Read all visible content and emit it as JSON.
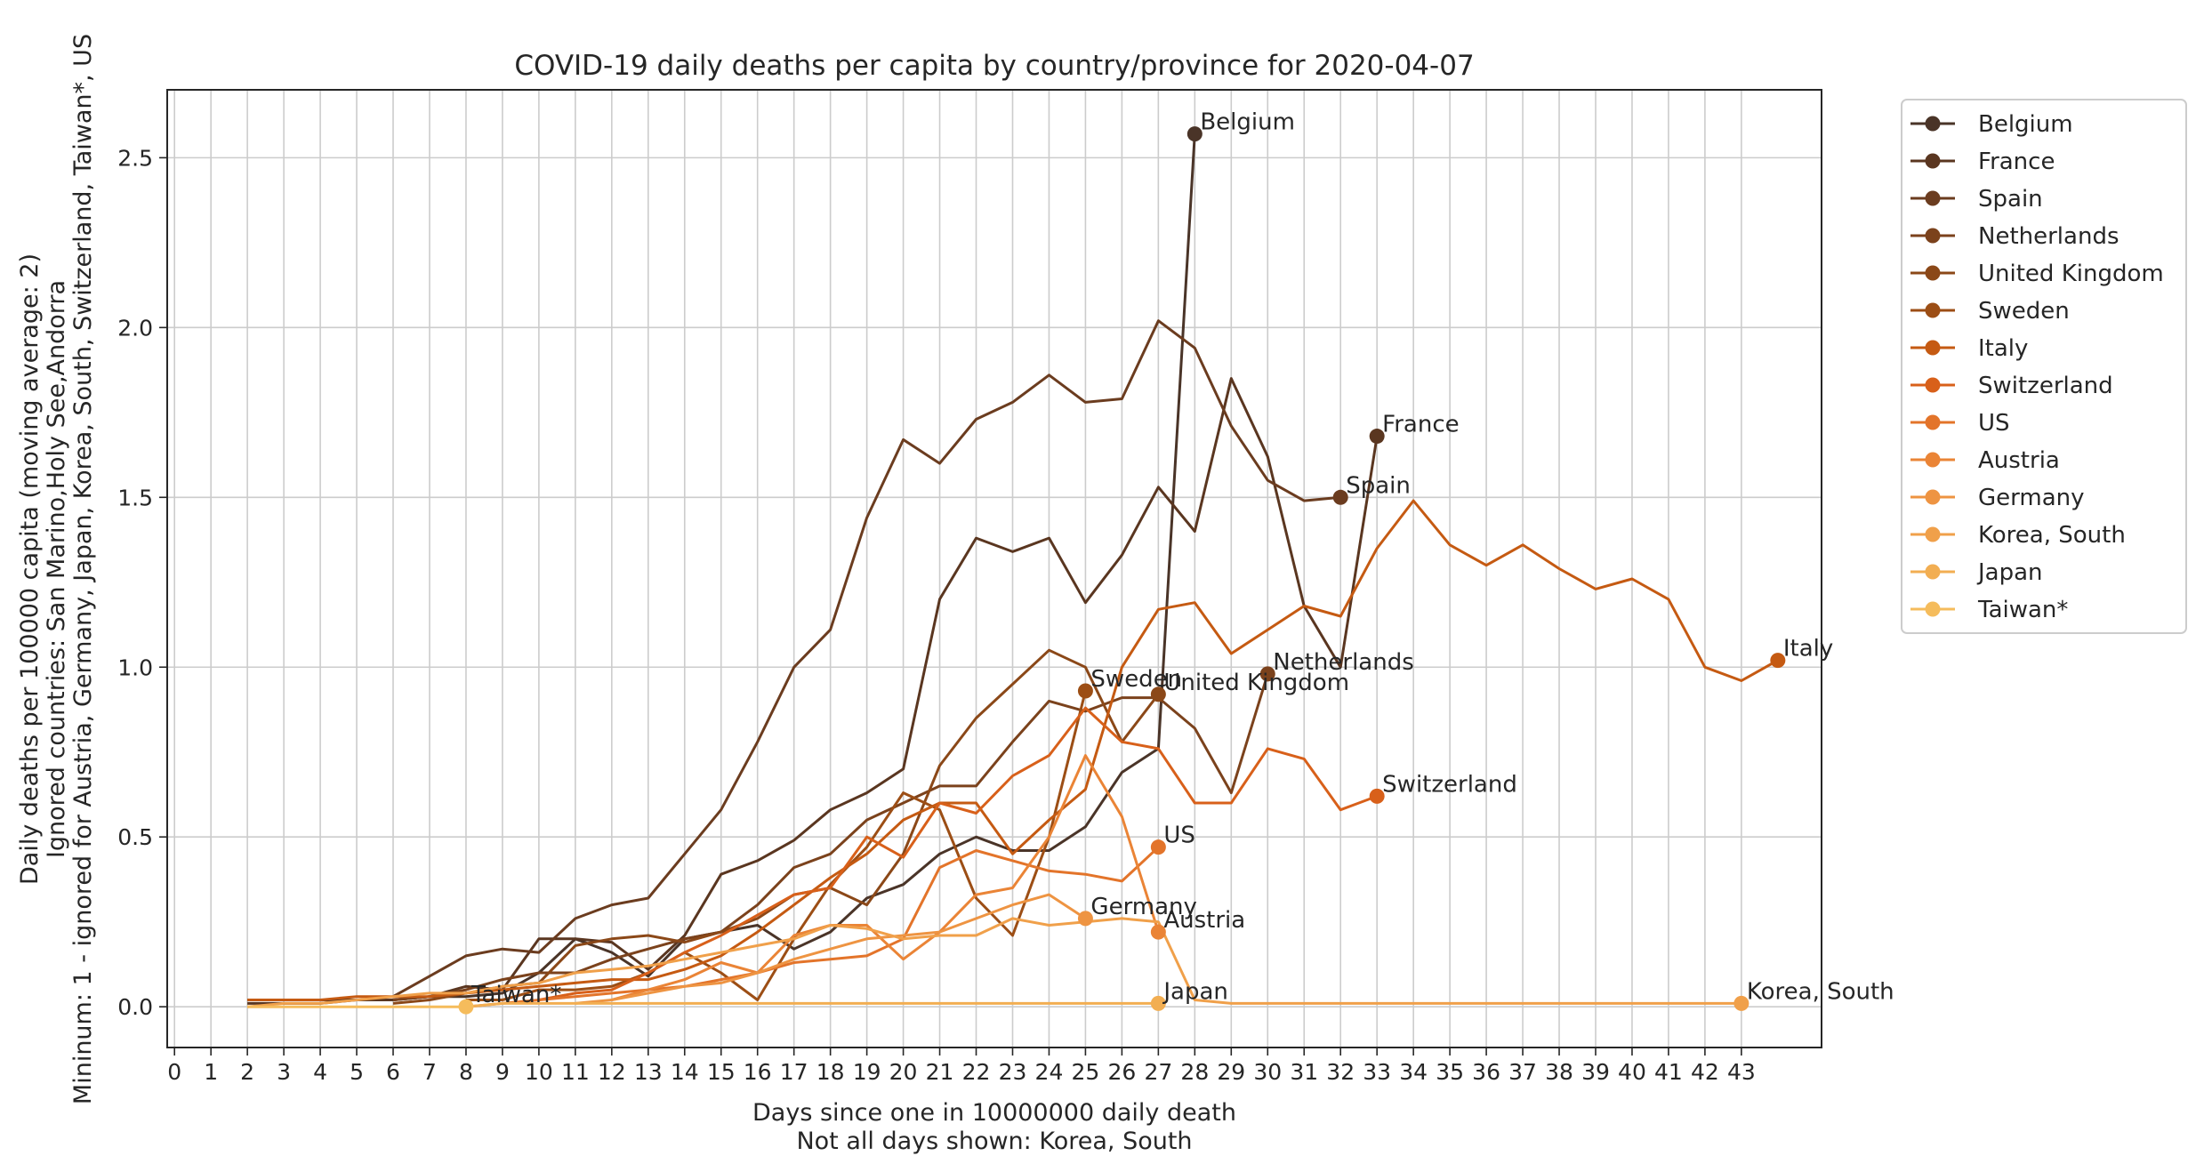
{
  "chart_data": {
    "type": "line",
    "title": "COVID-19 daily deaths per capita by country/province for 2020-04-07",
    "xlabel": [
      "Days since one in 10000000 daily death",
      "Not all days shown: Korea, South"
    ],
    "ylabel": [
      "Daily deaths per 100000 capita (moving average: 2)",
      "Ignored countries: San Marino,Holy See,Andorra",
      "Mininum: 1 - ignored for Austria, Germany, Japan, Korea, South, Switzerland, Taiwan*, US"
    ],
    "xlim": [
      -0.2,
      45.2
    ],
    "ylim": [
      -0.12,
      2.7
    ],
    "xticks": [
      0,
      1,
      2,
      3,
      4,
      5,
      6,
      7,
      8,
      9,
      10,
      11,
      12,
      13,
      14,
      15,
      16,
      17,
      18,
      19,
      20,
      21,
      22,
      23,
      24,
      25,
      26,
      27,
      28,
      29,
      30,
      31,
      32,
      33,
      34,
      35,
      36,
      37,
      38,
      39,
      40,
      41,
      42,
      43
    ],
    "yticks": [
      0.0,
      0.5,
      1.0,
      1.5,
      2.0,
      2.5
    ],
    "ytick_labels": [
      "0.0",
      "0.5",
      "1.0",
      "1.5",
      "2.0",
      "2.5"
    ],
    "grid": true,
    "legend_placement": "outside-top-right",
    "series": [
      {
        "name": "Belgium",
        "color": "#4a3428",
        "x_start": 2,
        "values": [
          0.02,
          0.02,
          0.02,
          0.02,
          0.02,
          0.03,
          0.03,
          0.04,
          0.1,
          0.2,
          0.16,
          0.09,
          0.2,
          0.22,
          0.24,
          0.17,
          0.22,
          0.32,
          0.36,
          0.45,
          0.5,
          0.46,
          0.46,
          0.53,
          0.69,
          0.76,
          2.57
        ]
      },
      {
        "name": "France",
        "color": "#5a3620",
        "x_start": 2,
        "values": [
          0.01,
          0.01,
          0.01,
          0.02,
          0.02,
          0.03,
          0.06,
          0.05,
          0.2,
          0.2,
          0.19,
          0.11,
          0.21,
          0.39,
          0.43,
          0.49,
          0.58,
          0.63,
          0.7,
          1.2,
          1.38,
          1.34,
          1.38,
          1.19,
          1.33,
          1.53,
          1.4,
          1.85,
          1.62,
          1.18,
          1.0,
          1.68
        ]
      },
      {
        "name": "Spain",
        "color": "#6b3c1f",
        "x_start": 6,
        "values": [
          0.03,
          0.09,
          0.15,
          0.17,
          0.16,
          0.26,
          0.3,
          0.32,
          0.45,
          0.58,
          0.78,
          1.0,
          1.11,
          1.44,
          1.67,
          1.6,
          1.73,
          1.78,
          1.86,
          1.78,
          1.79,
          2.02,
          1.94,
          1.71,
          1.55,
          1.49,
          1.5
        ]
      },
      {
        "name": "Netherlands",
        "color": "#7b421c",
        "x_start": 6,
        "values": [
          0.02,
          0.03,
          0.05,
          0.08,
          0.1,
          0.1,
          0.14,
          0.17,
          0.2,
          0.22,
          0.3,
          0.41,
          0.45,
          0.55,
          0.6,
          0.65,
          0.65,
          0.78,
          0.9,
          0.87,
          0.91,
          0.91,
          0.82,
          0.63,
          0.98
        ]
      },
      {
        "name": "United Kingdom",
        "color": "#8b4818",
        "x_start": 6,
        "values": [
          0.01,
          0.02,
          0.04,
          0.06,
          0.07,
          0.18,
          0.2,
          0.21,
          0.19,
          0.22,
          0.26,
          0.33,
          0.35,
          0.3,
          0.45,
          0.71,
          0.85,
          0.95,
          1.05,
          1.0,
          0.78,
          0.92
        ]
      },
      {
        "name": "Sweden",
        "color": "#9c4e15",
        "x_start": 8,
        "values": [
          0.02,
          0.02,
          0.05,
          0.05,
          0.06,
          0.1,
          0.16,
          0.1,
          0.02,
          0.2,
          0.36,
          0.47,
          0.63,
          0.58,
          0.32,
          0.21,
          0.5,
          0.93
        ]
      },
      {
        "name": "Italy",
        "color": "#c55a12",
        "x_start": 2,
        "values": [
          0.02,
          0.02,
          0.02,
          0.03,
          0.03,
          0.03,
          0.04,
          0.05,
          0.06,
          0.07,
          0.08,
          0.08,
          0.11,
          0.15,
          0.22,
          0.3,
          0.38,
          0.45,
          0.55,
          0.6,
          0.6,
          0.45,
          0.55,
          0.64,
          1.0,
          1.17,
          1.19,
          1.04,
          1.11,
          1.18,
          1.15,
          1.35,
          1.49,
          1.36,
          1.3,
          1.36,
          1.29,
          1.23,
          1.26,
          1.2,
          1.0,
          0.96,
          1.02
        ]
      },
      {
        "name": "Switzerland",
        "color": "#d8601a",
        "x_start": 10,
        "values": [
          0.02,
          0.04,
          0.05,
          0.1,
          0.16,
          0.21,
          0.27,
          0.33,
          0.35,
          0.5,
          0.44,
          0.6,
          0.57,
          0.68,
          0.74,
          0.88,
          0.78,
          0.76,
          0.6,
          0.6,
          0.76,
          0.73,
          0.58,
          0.62
        ]
      },
      {
        "name": "US",
        "color": "#e3742a",
        "x_start": 8,
        "values": [
          0.0,
          0.01,
          0.02,
          0.03,
          0.04,
          0.05,
          0.06,
          0.08,
          0.1,
          0.13,
          0.14,
          0.15,
          0.2,
          0.41,
          0.46,
          0.43,
          0.4,
          0.39,
          0.37,
          0.47
        ]
      },
      {
        "name": "Austria",
        "color": "#ea8436",
        "x_start": 12,
        "values": [
          0.02,
          0.05,
          0.08,
          0.13,
          0.1,
          0.21,
          0.24,
          0.24,
          0.14,
          0.22,
          0.33,
          0.35,
          0.5,
          0.74,
          0.56,
          0.22
        ]
      },
      {
        "name": "Germany",
        "color": "#ee9442",
        "x_start": 11,
        "values": [
          0.01,
          0.02,
          0.04,
          0.06,
          0.07,
          0.1,
          0.14,
          0.17,
          0.2,
          0.21,
          0.22,
          0.26,
          0.3,
          0.33,
          0.26
        ]
      },
      {
        "name": "Korea, South",
        "color": "#f0a04a",
        "x_start": 2,
        "values": [
          0.0,
          0.01,
          0.01,
          0.02,
          0.03,
          0.04,
          0.04,
          0.06,
          0.07,
          0.1,
          0.11,
          0.12,
          0.14,
          0.16,
          0.18,
          0.2,
          0.24,
          0.23,
          0.2,
          0.21,
          0.21,
          0.26,
          0.24,
          0.25,
          0.26,
          0.25,
          0.02,
          0.01,
          0.01,
          0.01,
          0.01,
          0.01,
          0.01,
          0.01,
          0.01,
          0.01,
          0.01,
          0.01,
          0.01,
          0.01,
          0.01,
          0.01
        ]
      },
      {
        "name": "Japan",
        "color": "#f2ae52",
        "x_start": 8,
        "values": [
          0.0,
          0.01,
          0.01,
          0.01,
          0.01,
          0.01,
          0.01,
          0.01,
          0.01,
          0.01,
          0.01,
          0.01,
          0.01,
          0.01,
          0.01,
          0.01,
          0.01,
          0.01,
          0.01,
          0.01
        ]
      },
      {
        "name": "Taiwan*",
        "color": "#f5bc5c",
        "x_start": 2,
        "values": [
          0.0,
          0.0,
          0.0,
          0.0,
          0.0,
          0.0,
          0.0
        ]
      }
    ],
    "end_labels": [
      {
        "series": "Belgium",
        "text": "Belgium"
      },
      {
        "series": "France",
        "text": "France"
      },
      {
        "series": "Spain",
        "text": "Spain"
      },
      {
        "series": "Netherlands",
        "text": "Netherlands"
      },
      {
        "series": "United Kingdom",
        "text": "United Kingdom"
      },
      {
        "series": "Sweden",
        "text": "Sweden"
      },
      {
        "series": "Italy",
        "text": "Italy"
      },
      {
        "series": "Switzerland",
        "text": "Switzerland"
      },
      {
        "series": "US",
        "text": "US"
      },
      {
        "series": "Austria",
        "text": "Austria"
      },
      {
        "series": "Germany",
        "text": "Germany"
      },
      {
        "series": "Korea, South",
        "text": "Korea, South"
      },
      {
        "series": "Japan",
        "text": "Japan"
      },
      {
        "series": "Taiwan*",
        "text": "Taiwan*"
      }
    ]
  }
}
